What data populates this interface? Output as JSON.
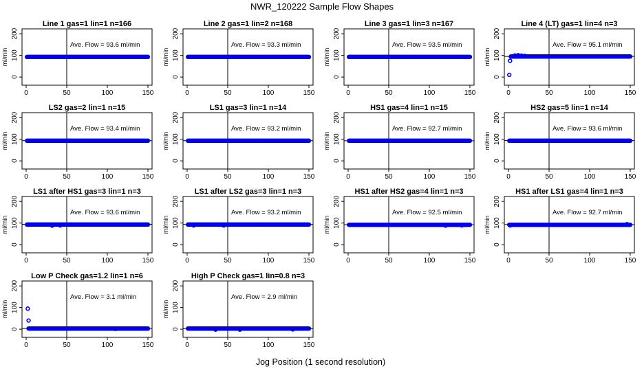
{
  "figure": {
    "title": "NWR_120222  Sample Flow Shapes",
    "xlabel": "Jog Position (1 second resolution)"
  },
  "chart_data": [
    {
      "type": "scatter",
      "title": "Line 1 gas=1 lin=1 n=166",
      "ylabel": "ml/min",
      "annotation": "Ave. Flow =  93.6  ml/min",
      "xlim": [
        0,
        150
      ],
      "ylim": [
        -25,
        210
      ],
      "xticks": [
        0,
        50,
        100,
        150
      ],
      "yticks": [
        0,
        100,
        200
      ],
      "vline": 50,
      "hline": null,
      "series": [
        {
          "points": [
            [
              1,
              93
            ],
            [
              150,
              93
            ]
          ],
          "flat": true
        }
      ]
    },
    {
      "type": "scatter",
      "title": "Line 2 gas=1 lin=2 n=168",
      "ylabel": "ml/min",
      "annotation": "Ave. Flow =  93.3  ml/min",
      "xlim": [
        0,
        150
      ],
      "ylim": [
        -25,
        210
      ],
      "xticks": [
        0,
        50,
        100,
        150
      ],
      "yticks": [
        0,
        100,
        200
      ],
      "vline": 50,
      "hline": null,
      "series": [
        {
          "points": [
            [
              1,
              93
            ],
            [
              150,
              93
            ]
          ],
          "flat": true
        }
      ]
    },
    {
      "type": "scatter",
      "title": "Line 3 gas=1 lin=3 n=167",
      "ylabel": "ml/min",
      "annotation": "Ave. Flow =  93.5  ml/min",
      "xlim": [
        0,
        150
      ],
      "ylim": [
        -25,
        210
      ],
      "xticks": [
        0,
        50,
        100,
        150
      ],
      "yticks": [
        0,
        100,
        200
      ],
      "vline": 50,
      "hline": null,
      "series": [
        {
          "points": [
            [
              1,
              93
            ],
            [
              150,
              93
            ]
          ],
          "flat": true
        }
      ]
    },
    {
      "type": "scatter",
      "title": "Line 4 (LT) gas=1 lin=4 n=3",
      "ylabel": "ml/min",
      "annotation": "Ave. Flow =  95.1  ml/min",
      "xlim": [
        0,
        150
      ],
      "ylim": [
        -25,
        210
      ],
      "xticks": [
        0,
        50,
        100,
        150
      ],
      "yticks": [
        0,
        100,
        200
      ],
      "vline": 50,
      "hline": 95.1,
      "series": [
        {
          "points": [
            [
              1,
              10
            ],
            [
              2,
              75
            ],
            [
              3,
              95
            ],
            [
              10,
              98
            ],
            [
              15,
              97
            ],
            [
              150,
              95
            ]
          ],
          "flat": true,
          "flat_from": 3,
          "extras": [
            [
              1,
              10
            ],
            [
              2,
              75
            ],
            [
              8,
              100
            ],
            [
              12,
              101
            ],
            [
              16,
              99
            ],
            [
              20,
              98
            ]
          ]
        }
      ]
    },
    {
      "type": "scatter",
      "title": "LS2 gas=2 lin=1 n=15",
      "ylabel": "ml/min",
      "annotation": "Ave. Flow =  93.4  ml/min",
      "xlim": [
        0,
        150
      ],
      "ylim": [
        -25,
        210
      ],
      "xticks": [
        0,
        50,
        100,
        150
      ],
      "yticks": [
        0,
        100,
        200
      ],
      "vline": 50,
      "hline": 93.4,
      "series": [
        {
          "points": [
            [
              1,
              93
            ],
            [
              150,
              93
            ]
          ],
          "flat": true
        }
      ]
    },
    {
      "type": "scatter",
      "title": "LS1 gas=3 lin=1 n=14",
      "ylabel": "ml/min",
      "annotation": "Ave. Flow =  93.2  ml/min",
      "xlim": [
        0,
        150
      ],
      "ylim": [
        -25,
        210
      ],
      "xticks": [
        0,
        50,
        100,
        150
      ],
      "yticks": [
        0,
        100,
        200
      ],
      "vline": 50,
      "hline": 93.2,
      "series": [
        {
          "points": [
            [
              1,
              93
            ],
            [
              150,
              93
            ]
          ],
          "flat": true
        }
      ]
    },
    {
      "type": "scatter",
      "title": "HS1 gas=4 lin=1 n=15",
      "ylabel": "ml/min",
      "annotation": "Ave. Flow =  92.7  ml/min",
      "xlim": [
        0,
        150
      ],
      "ylim": [
        -25,
        210
      ],
      "xticks": [
        0,
        50,
        100,
        150
      ],
      "yticks": [
        0,
        100,
        200
      ],
      "vline": 50,
      "hline": 92.7,
      "series": [
        {
          "points": [
            [
              1,
              93
            ],
            [
              150,
              93
            ]
          ],
          "flat": true
        }
      ]
    },
    {
      "type": "scatter",
      "title": "HS2 gas=5 lin=1 n=14",
      "ylabel": "ml/min",
      "annotation": "Ave. Flow =  93.6  ml/min",
      "xlim": [
        0,
        150
      ],
      "ylim": [
        -25,
        210
      ],
      "xticks": [
        0,
        50,
        100,
        150
      ],
      "yticks": [
        0,
        100,
        200
      ],
      "vline": 50,
      "hline": 93.6,
      "series": [
        {
          "points": [
            [
              1,
              93
            ],
            [
              150,
              93
            ]
          ],
          "flat": true
        }
      ]
    },
    {
      "type": "scatter",
      "title": "LS1 after HS1 gas=3 lin=1 n=3",
      "ylabel": "ml/min",
      "annotation": "Ave. Flow =  93.6  ml/min",
      "xlim": [
        0,
        150
      ],
      "ylim": [
        -25,
        210
      ],
      "xticks": [
        0,
        50,
        100,
        150
      ],
      "yticks": [
        0,
        100,
        200
      ],
      "vline": 50,
      "hline": 93.6,
      "series": [
        {
          "points": [
            [
              1,
              93
            ],
            [
              150,
              93
            ]
          ],
          "flat": true,
          "extras": [
            [
              32,
              88
            ],
            [
              42,
              89
            ]
          ]
        }
      ]
    },
    {
      "type": "scatter",
      "title": "LS1 after LS2 gas=3 lin=1 n=3",
      "ylabel": "ml/min",
      "annotation": "Ave. Flow =  93.2  ml/min",
      "xlim": [
        0,
        150
      ],
      "ylim": [
        -25,
        210
      ],
      "xticks": [
        0,
        50,
        100,
        150
      ],
      "yticks": [
        0,
        100,
        200
      ],
      "vline": 50,
      "hline": 93.2,
      "series": [
        {
          "points": [
            [
              1,
              93
            ],
            [
              150,
              93
            ]
          ],
          "flat": true,
          "extras": [
            [
              8,
              89
            ],
            [
              45,
              89
            ]
          ]
        }
      ]
    },
    {
      "type": "scatter",
      "title": "HS1 after HS2 gas=4 lin=1 n=3",
      "ylabel": "ml/min",
      "annotation": "Ave. Flow =  92.5  ml/min",
      "xlim": [
        0,
        150
      ],
      "ylim": [
        -25,
        210
      ],
      "xticks": [
        0,
        50,
        100,
        150
      ],
      "yticks": [
        0,
        100,
        200
      ],
      "vline": 50,
      "hline": 92.5,
      "series": [
        {
          "points": [
            [
              1,
              92
            ],
            [
              150,
              92
            ]
          ],
          "flat": true,
          "extras": [
            [
              120,
              88
            ],
            [
              140,
              89
            ]
          ]
        }
      ]
    },
    {
      "type": "scatter",
      "title": "HS1 after LS1 gas=4 lin=1 n=3",
      "ylabel": "ml/min",
      "annotation": "Ave. Flow =  92.7  ml/min",
      "xlim": [
        0,
        150
      ],
      "ylim": [
        -25,
        210
      ],
      "xticks": [
        0,
        50,
        100,
        150
      ],
      "yticks": [
        0,
        100,
        200
      ],
      "vline": 50,
      "hline": 92.7,
      "series": [
        {
          "points": [
            [
              1,
              92
            ],
            [
              150,
              92
            ]
          ],
          "flat": true,
          "extras": [
            [
              2,
              89
            ],
            [
              146,
              95
            ]
          ]
        }
      ]
    },
    {
      "type": "scatter",
      "title": "Low P Check gas=1.2 lin=1 n=6",
      "ylabel": "ml/min",
      "annotation": "Ave. Flow =  3.1  ml/min",
      "xlim": [
        0,
        150
      ],
      "ylim": [
        -25,
        210
      ],
      "xticks": [
        0,
        50,
        100,
        150
      ],
      "yticks": [
        0,
        100,
        200
      ],
      "vline": 50,
      "hline": 3.1,
      "series": [
        {
          "points": [
            [
              1,
              3
            ],
            [
              150,
              3
            ]
          ],
          "flat": true,
          "flat_from": 3,
          "extras": [
            [
              2,
              95
            ],
            [
              3,
              40
            ],
            [
              110,
              1
            ]
          ]
        }
      ]
    },
    {
      "type": "scatter",
      "title": "High P Check gas=1 lin=0.8 n=3",
      "ylabel": "ml/min",
      "annotation": "Ave. Flow =  2.9  ml/min",
      "xlim": [
        0,
        150
      ],
      "ylim": [
        -25,
        210
      ],
      "xticks": [
        0,
        50,
        100,
        150
      ],
      "yticks": [
        0,
        100,
        200
      ],
      "vline": 50,
      "hline": 2.9,
      "series": [
        {
          "points": [
            [
              1,
              3
            ],
            [
              150,
              3
            ]
          ],
          "flat": true,
          "extras": [
            [
              35,
              -2
            ],
            [
              65,
              -2
            ],
            [
              130,
              -1
            ]
          ]
        }
      ]
    }
  ],
  "style": {
    "point_color": "#0000ee",
    "axis_color": "#000000"
  }
}
